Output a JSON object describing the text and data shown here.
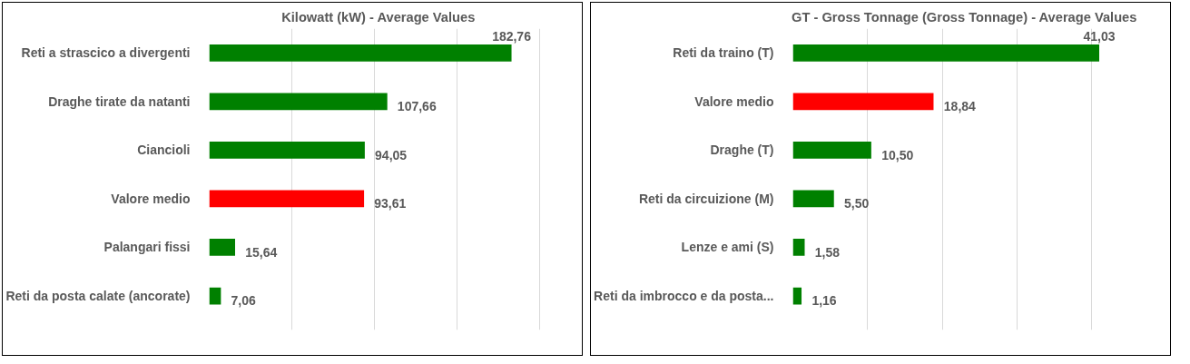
{
  "chart_data": [
    {
      "type": "bar",
      "orientation": "horizontal",
      "title": "Kilowatt (kW) - Average Values",
      "categories": [
        "Reti a strascico a divergenti",
        "Draghe tirate da natanti",
        "Ciancioli",
        "Valore medio",
        "Palangari fissi",
        "Reti da posta calate (ancorate)"
      ],
      "values": [
        182.76,
        107.66,
        94.05,
        93.61,
        15.64,
        7.06
      ],
      "colors": [
        "#008000",
        "#008000",
        "#008000",
        "#ff0000",
        "#008000",
        "#008000"
      ],
      "value_labels": [
        "182,76",
        "107,66",
        "94,05",
        "93,61",
        "15,64",
        "7,06"
      ],
      "grid": "x",
      "tick_labels": "y"
    },
    {
      "type": "bar",
      "orientation": "horizontal",
      "title": "GT - Gross Tonnage (Gross Tonnage) - Average Values",
      "categories": [
        "Reti da traino (T)",
        "Valore medio",
        "Draghe (T)",
        "Reti da circuizione (M)",
        "Lenze e ami (S)",
        "Reti da imbrocco e da posta..."
      ],
      "values": [
        41.03,
        18.84,
        10.5,
        5.5,
        1.58,
        1.16
      ],
      "colors": [
        "#008000",
        "#ff0000",
        "#008000",
        "#008000",
        "#008000",
        "#008000"
      ],
      "value_labels": [
        "41,03",
        "18,84",
        "10,50",
        "5,50",
        "1,58",
        "1,16"
      ],
      "grid": "x",
      "tick_labels": "y"
    }
  ]
}
